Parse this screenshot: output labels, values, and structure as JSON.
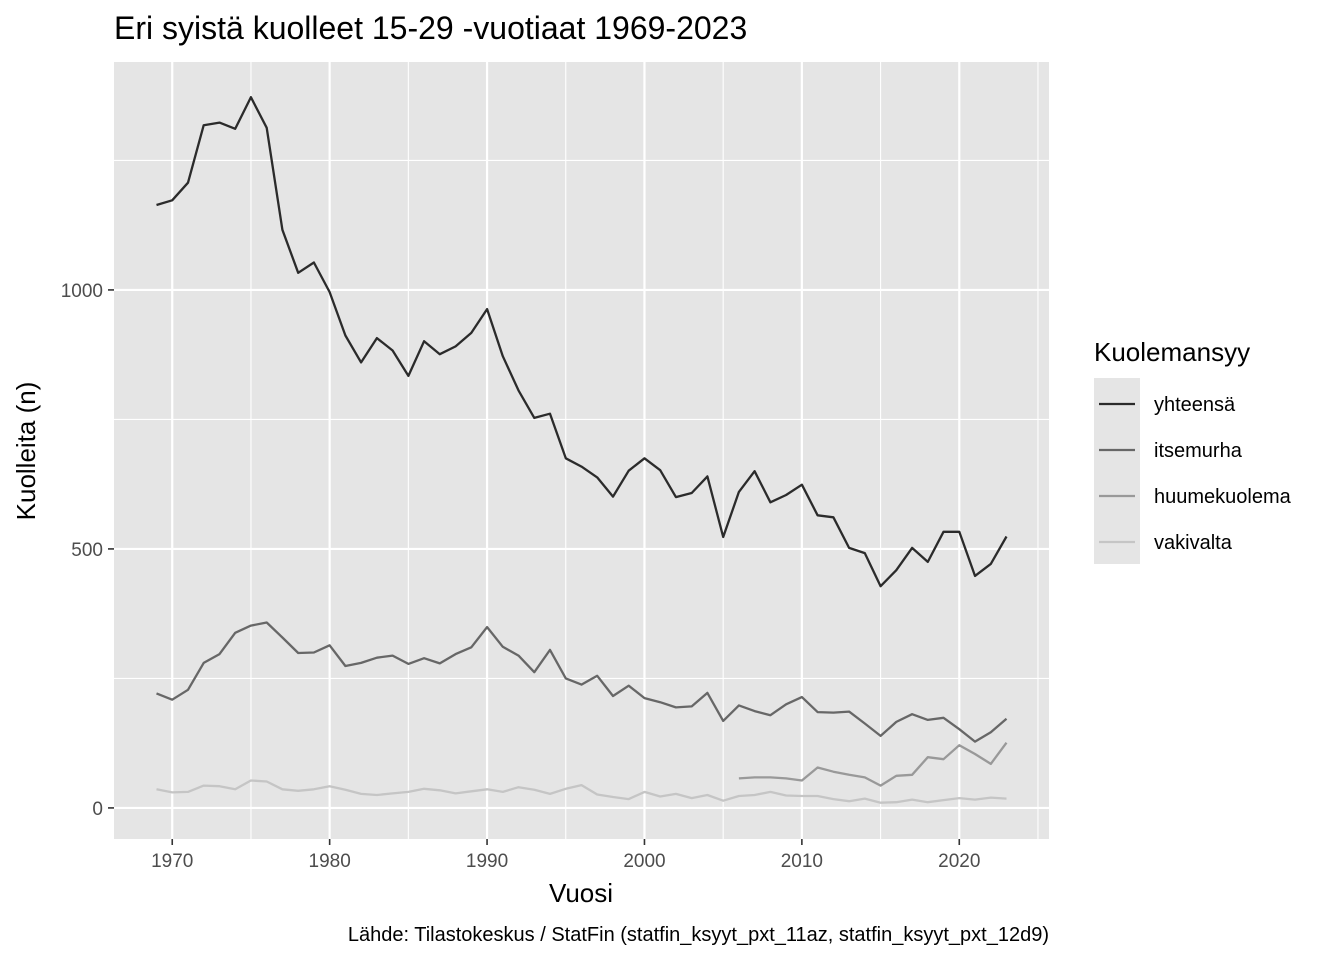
{
  "chart_data": {
    "type": "line",
    "title": "Eri syistä kuolleet 15-29 -vuotiaat 1969-2023",
    "xlabel": "Vuosi",
    "ylabel": "Kuolleita (n)",
    "caption": "Lähde: Tilastokeskus / StatFin (statfin_ksyyt_pxt_11az, statfin_ksyyt_pxt_12d9)",
    "xlim": [
      1966.3,
      2025.7
    ],
    "ylim": [
      -60,
      1440
    ],
    "x_ticks": [
      1970,
      1980,
      1990,
      2000,
      2010,
      2020
    ],
    "y_ticks": [
      0,
      500,
      1000
    ],
    "grid": true,
    "legend": {
      "title": "Kuolemansyy",
      "position": "right",
      "items": [
        "yhteensä",
        "itsemurha",
        "huumekuolema",
        "vakivalta"
      ]
    },
    "colors": {
      "yhteensä": "#2b2b2b",
      "itsemurha": "#676767",
      "huumekuolema": "#999999",
      "vakivalta": "#c5c5c5"
    },
    "series": [
      {
        "name": "yhteensä",
        "x": [
          1969,
          1970,
          1971,
          1972,
          1973,
          1974,
          1975,
          1976,
          1977,
          1978,
          1979,
          1980,
          1981,
          1982,
          1983,
          1984,
          1985,
          1986,
          1987,
          1988,
          1989,
          1990,
          1991,
          1992,
          1993,
          1994,
          1995,
          1996,
          1997,
          1998,
          1999,
          2000,
          2001,
          2002,
          2003,
          2004,
          2005,
          2006,
          2007,
          2008,
          2009,
          2010,
          2011,
          2012,
          2013,
          2014,
          2015,
          2016,
          2017,
          2018,
          2019,
          2020,
          2021,
          2022,
          2023
        ],
        "values": [
          1164,
          1173,
          1207,
          1318,
          1323,
          1311,
          1372,
          1313,
          1116,
          1033,
          1053,
          996,
          912,
          860,
          907,
          883,
          834,
          901,
          876,
          891,
          917,
          963,
          872,
          806,
          753,
          761,
          675,
          659,
          638,
          601,
          651,
          675,
          652,
          600,
          608,
          640,
          523,
          610,
          650,
          590,
          604,
          624,
          565,
          561,
          502,
          492,
          428,
          459,
          502,
          475,
          533,
          533,
          448,
          471,
          524
        ]
      },
      {
        "name": "itsemurha",
        "x": [
          1969,
          1970,
          1971,
          1972,
          1973,
          1974,
          1975,
          1976,
          1977,
          1978,
          1979,
          1980,
          1981,
          1982,
          1983,
          1984,
          1985,
          1986,
          1987,
          1988,
          1989,
          1990,
          1991,
          1992,
          1993,
          1994,
          1995,
          1996,
          1997,
          1998,
          1999,
          2000,
          2001,
          2002,
          2003,
          2004,
          2005,
          2006,
          2007,
          2008,
          2009,
          2010,
          2011,
          2012,
          2013,
          2014,
          2015,
          2016,
          2017,
          2018,
          2019,
          2020,
          2021,
          2022,
          2023
        ],
        "values": [
          221,
          209,
          228,
          280,
          297,
          338,
          352,
          358,
          329,
          299,
          300,
          314,
          274,
          280,
          290,
          294,
          278,
          289,
          279,
          297,
          310,
          349,
          311,
          294,
          262,
          305,
          250,
          238,
          255,
          216,
          236,
          212,
          204,
          194,
          196,
          222,
          168,
          198,
          187,
          179,
          200,
          214,
          185,
          184,
          186,
          163,
          139,
          166,
          181,
          170,
          174,
          152,
          128,
          146,
          172
        ]
      },
      {
        "name": "huumekuolema",
        "x": [
          2006,
          2007,
          2008,
          2009,
          2010,
          2011,
          2012,
          2013,
          2014,
          2015,
          2016,
          2017,
          2018,
          2019,
          2020,
          2021,
          2022,
          2023
        ],
        "values": [
          57,
          59,
          59,
          57,
          53,
          78,
          70,
          64,
          59,
          43,
          62,
          64,
          98,
          94,
          121,
          104,
          85,
          126
        ]
      },
      {
        "name": "vakivalta",
        "x": [
          1969,
          1970,
          1971,
          1972,
          1973,
          1974,
          1975,
          1976,
          1977,
          1978,
          1979,
          1980,
          1981,
          1982,
          1983,
          1984,
          1985,
          1986,
          1987,
          1988,
          1989,
          1990,
          1991,
          1992,
          1993,
          1994,
          1995,
          1996,
          1997,
          1998,
          1999,
          2000,
          2001,
          2002,
          2003,
          2004,
          2005,
          2006,
          2007,
          2008,
          2009,
          2010,
          2011,
          2012,
          2013,
          2014,
          2015,
          2016,
          2017,
          2018,
          2019,
          2020,
          2021,
          2022,
          2023
        ],
        "values": [
          36,
          30,
          31,
          43,
          42,
          36,
          53,
          51,
          36,
          33,
          36,
          42,
          35,
          27,
          25,
          28,
          31,
          37,
          34,
          28,
          32,
          36,
          31,
          40,
          35,
          27,
          37,
          44,
          26,
          21,
          17,
          31,
          22,
          27,
          19,
          25,
          14,
          23,
          25,
          31,
          24,
          23,
          23,
          17,
          13,
          18,
          10,
          11,
          16,
          11,
          15,
          19,
          16,
          20,
          18
        ]
      }
    ]
  }
}
